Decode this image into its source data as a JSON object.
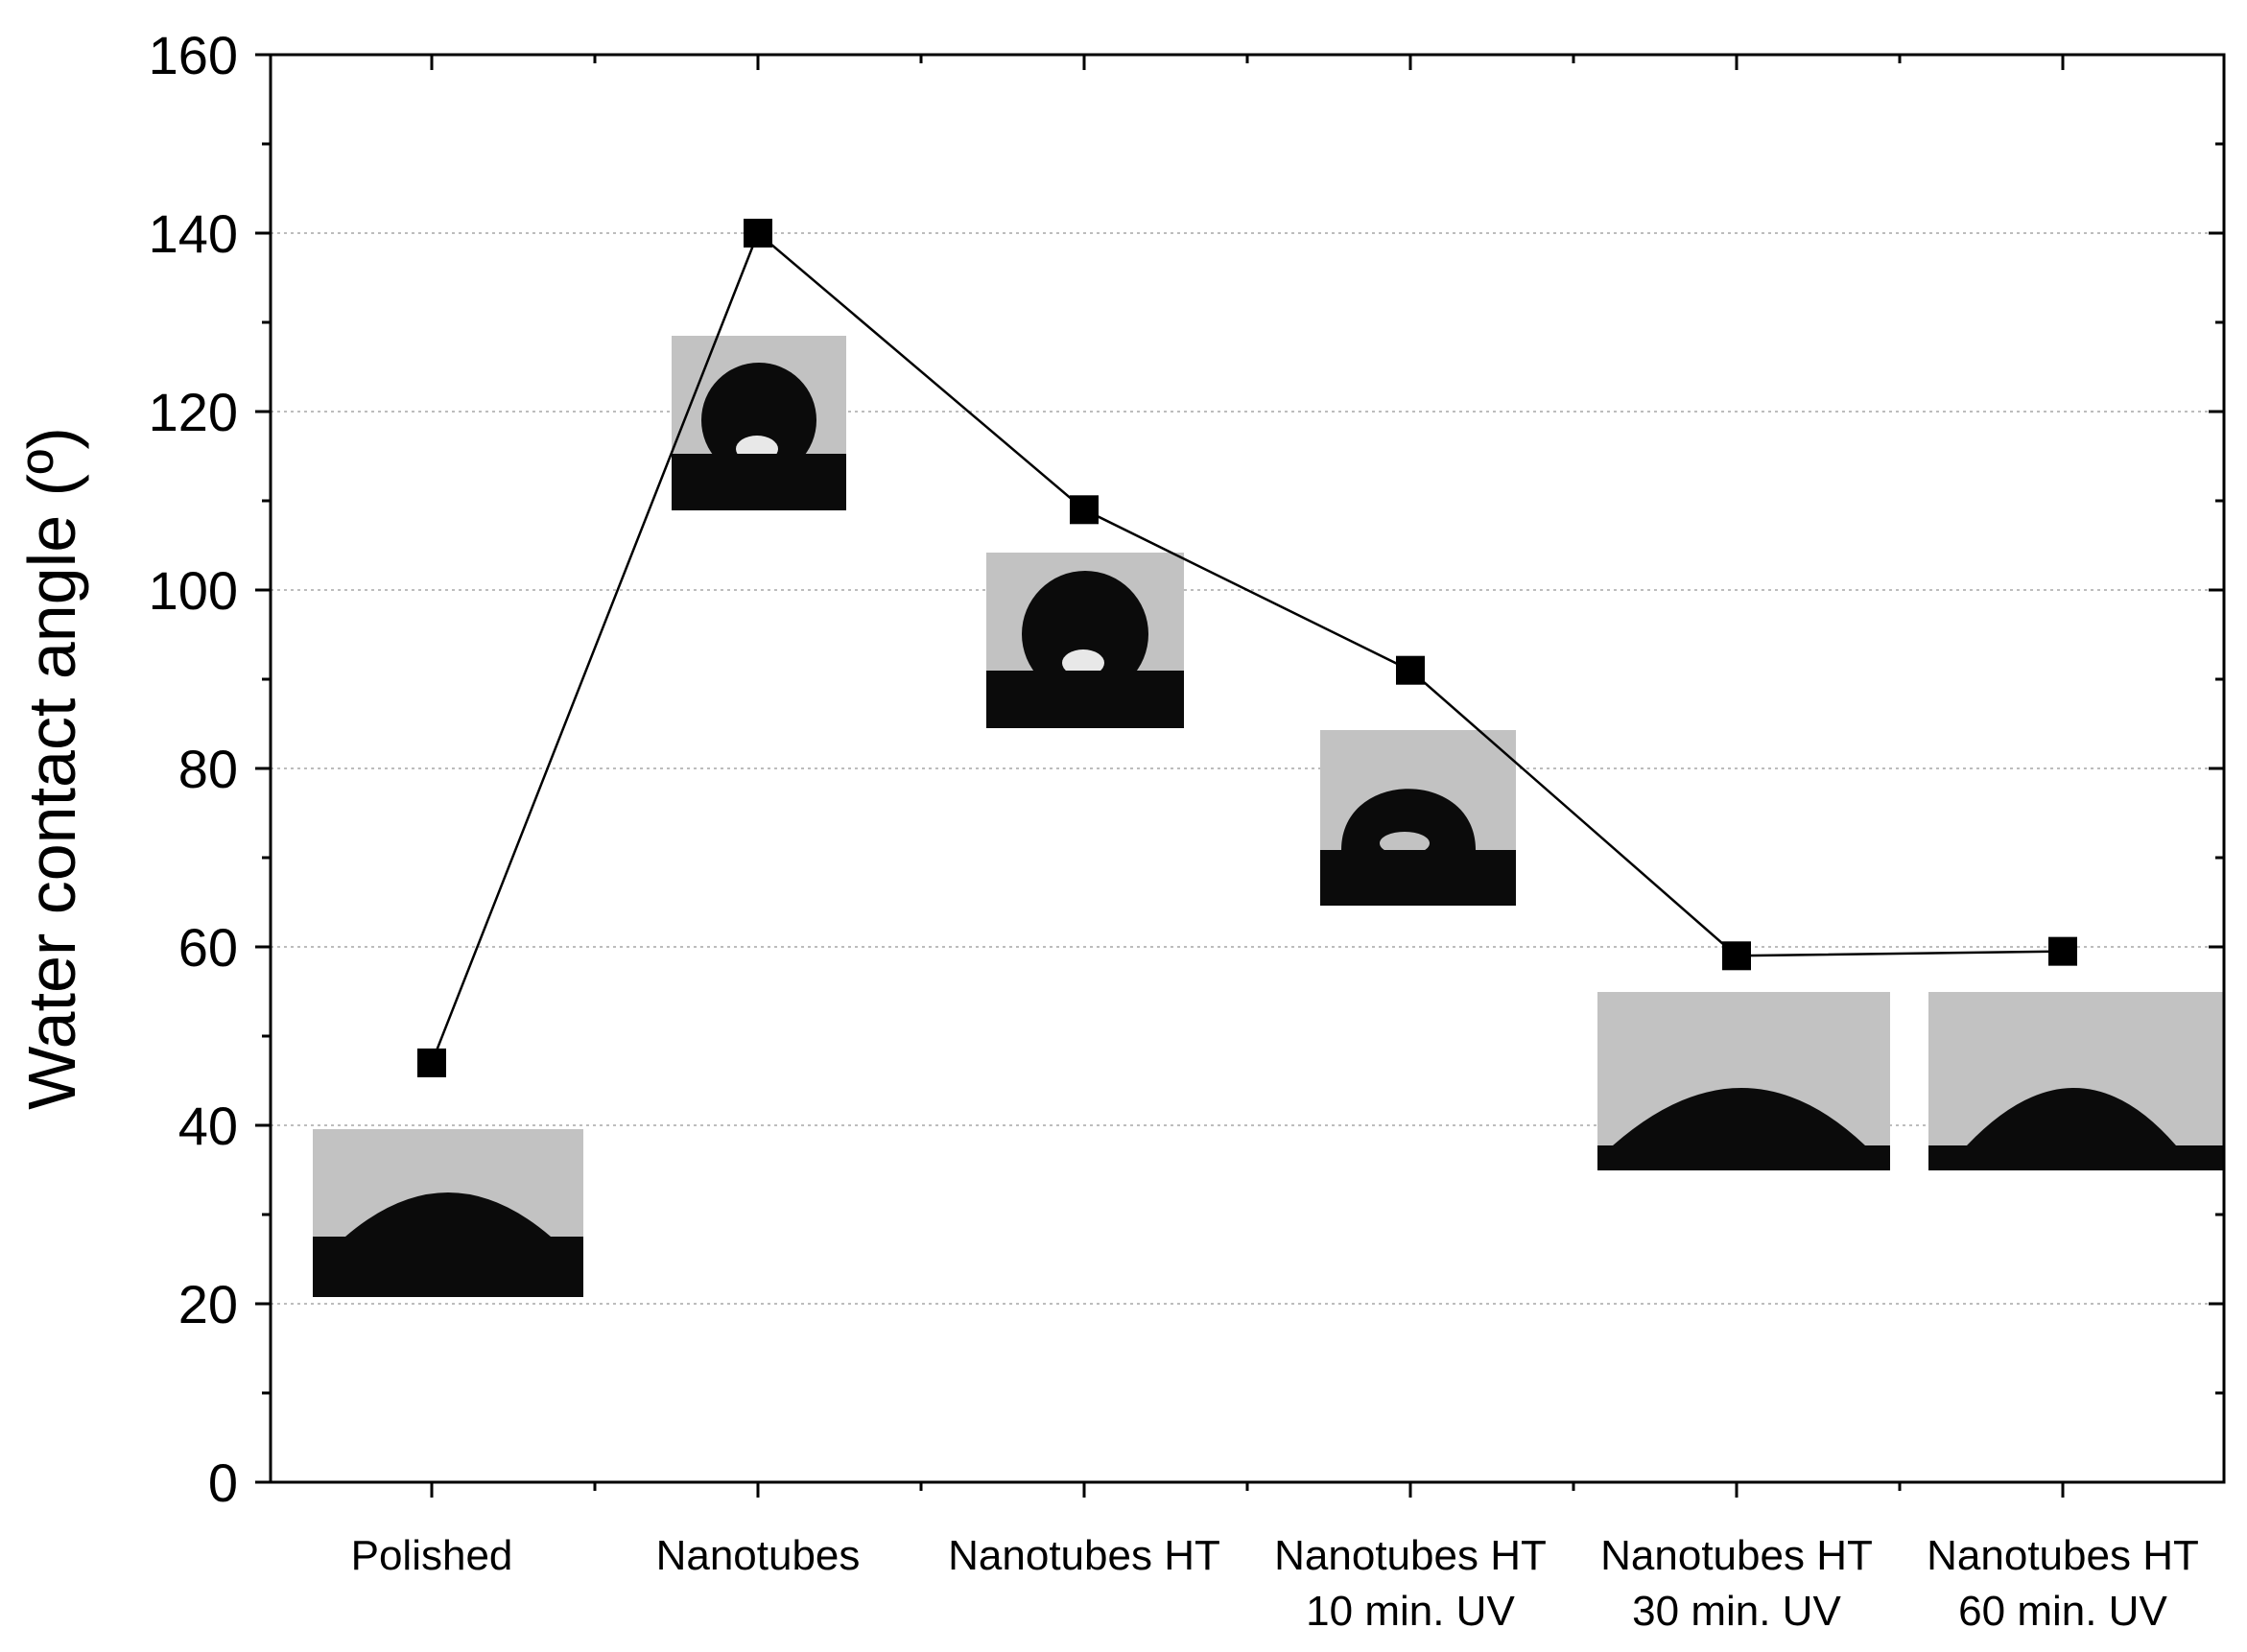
{
  "chart_data": {
    "type": "line",
    "categories": [
      [
        "Polished"
      ],
      [
        "Nanotubes"
      ],
      [
        "Nanotubes HT"
      ],
      [
        "Nanotubes HT",
        "10 min. UV"
      ],
      [
        "Nanotubes HT",
        "30 min. UV"
      ],
      [
        "Nanotubes HT",
        "60 min. UV"
      ]
    ],
    "values": [
      47,
      140,
      109,
      91,
      59,
      59.5
    ],
    "ylabel": "Water contact angle (º)",
    "xlabel": "",
    "ylim": [
      0,
      160
    ],
    "yticks": [
      0,
      20,
      40,
      60,
      80,
      100,
      120,
      140,
      160
    ],
    "grid": "horizontal dotted",
    "marker": "square",
    "colors": {
      "line": "#000000",
      "marker": "#000000",
      "grid": "#bdbdbd",
      "photo_bg": "#c2c2c2",
      "photo_dark": "#0b0b0b"
    },
    "insets": [
      {
        "category": 0,
        "type": "water-droplet-photo"
      },
      {
        "category": 1,
        "type": "water-droplet-photo"
      },
      {
        "category": 2,
        "type": "water-droplet-photo"
      },
      {
        "category": 3,
        "type": "water-droplet-photo"
      },
      {
        "category": 4,
        "type": "water-droplet-photo"
      },
      {
        "category": 5,
        "type": "water-droplet-photo"
      }
    ]
  }
}
